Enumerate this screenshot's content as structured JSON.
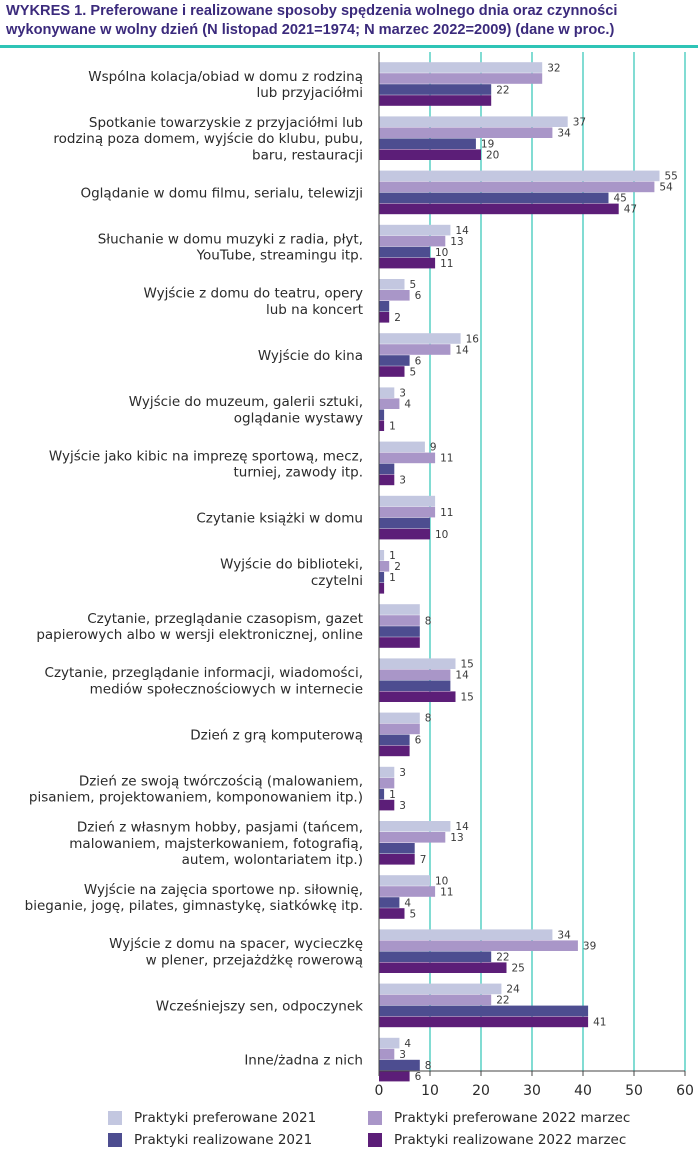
{
  "title_line1": "WYKRES 1. Preferowane i realizowane sposoby spędzenia wolnego dnia oraz czynności",
  "title_line2": "wykonywane w wolny dzień (N listopad 2021=1974; N marzec 2022=2009) (dane w proc.)",
  "colors": {
    "pref2021": "#c3c7e0",
    "pref2022": "#a996c8",
    "real2021": "#4d4d90",
    "real2022": "#5c1e78",
    "grid": "#2ec4b6",
    "axis": "#444444",
    "title": "#3b2a7c"
  },
  "chart_data": {
    "type": "bar",
    "orientation": "horizontal",
    "title": "WYKRES 1. Preferowane i realizowane sposoby spędzenia wolnego dnia oraz czynności wykonywane w wolny dzień (N listopad 2021=1974; N marzec 2022=2009) (dane w proc.)",
    "xlabel": "",
    "ylabel": "",
    "xlim": [
      0,
      60
    ],
    "xticks": [
      0,
      10,
      20,
      30,
      40,
      50,
      60
    ],
    "grid": true,
    "legend_position": "bottom",
    "categories": [
      [
        "Wspólna kolacja/obiad w domu z rodziną",
        "lub przyjaciółmi"
      ],
      [
        "Spotkanie towarzyskie z przyjaciółmi lub",
        "rodziną poza domem, wyjście do klubu, pubu,",
        "baru, restauracji"
      ],
      [
        "Oglądanie w domu filmu, serialu, telewizji"
      ],
      [
        "Słuchanie w domu muzyki z radia, płyt,",
        "YouTube, streamingu itp."
      ],
      [
        "Wyjście z domu do teatru, opery",
        "lub na koncert"
      ],
      [
        "Wyjście do kina"
      ],
      [
        "Wyjście do muzeum, galerii sztuki,",
        "oglądanie wystawy"
      ],
      [
        "Wyjście jako kibic na imprezę sportową, mecz,",
        "turniej, zawody itp."
      ],
      [
        "Czytanie książki w domu"
      ],
      [
        "Wyjście do biblioteki,",
        "czytelni"
      ],
      [
        "Czytanie, przeglądanie czasopism, gazet",
        "papierowych albo w wersji elektronicznej, online"
      ],
      [
        "Czytanie, przeglądanie informacji, wiadomości,",
        "mediów społecznościowych w internecie"
      ],
      [
        "Dzień z grą komputerową"
      ],
      [
        "Dzień ze swoją twórczością (malowaniem,",
        "pisaniem, projektowaniem, komponowaniem itp.)"
      ],
      [
        "Dzień z własnym hobby, pasjami (tańcem,",
        "malowaniem, majsterkowaniem, fotografią,",
        "autem, wolontariatem itp.)"
      ],
      [
        "Wyjście na zajęcia sportowe np. siłownię,",
        "bieganie, jogę, pilates, gimnastykę, siatkówkę itp."
      ],
      [
        "Wyjście z domu na spacer, wycieczkę",
        "w plener, przejażdżkę rowerową"
      ],
      [
        "Wcześniejszy sen, odpoczynek"
      ],
      [
        "Inne/żadna z nich"
      ]
    ],
    "series": [
      {
        "name": "Praktyki preferowane 2021",
        "color_key": "pref2021",
        "values": [
          32,
          37,
          55,
          14,
          5,
          16,
          3,
          9,
          11,
          1,
          8,
          15,
          8,
          3,
          14,
          10,
          34,
          24,
          4
        ],
        "labels": [
          "32",
          "37",
          "55",
          "14",
          "5",
          "16",
          "3",
          "9",
          "",
          "1",
          "",
          "15",
          "8",
          "3",
          "14",
          "10",
          "34",
          "24",
          "4"
        ]
      },
      {
        "name": "Praktyki preferowane 2022 marzec",
        "color_key": "pref2022",
        "values": [
          32,
          34,
          54,
          13,
          6,
          14,
          4,
          11,
          11,
          2,
          8,
          14,
          8,
          3,
          13,
          11,
          39,
          22,
          3
        ],
        "labels": [
          "",
          "34",
          "54",
          "13",
          "6",
          "14",
          "4",
          "11",
          "11",
          "2",
          "8",
          "14",
          "",
          "",
          "13",
          "11",
          "39",
          "22",
          "3"
        ]
      },
      {
        "name": "Praktyki realizowane 2021",
        "color_key": "real2021",
        "values": [
          22,
          19,
          45,
          10,
          2,
          6,
          1,
          3,
          10,
          1,
          8,
          14,
          6,
          1,
          7,
          4,
          22,
          41,
          8
        ],
        "labels": [
          "22",
          "19",
          "45",
          "10",
          "",
          "6",
          "",
          "",
          "",
          "1",
          "",
          "",
          "6",
          "1",
          "",
          "4",
          "22",
          "",
          "8"
        ]
      },
      {
        "name": "Praktyki realizowane 2022 marzec",
        "color_key": "real2022",
        "values": [
          22,
          20,
          47,
          11,
          2,
          5,
          1,
          3,
          10,
          1,
          8,
          15,
          6,
          3,
          7,
          5,
          25,
          41,
          6
        ],
        "labels": [
          "",
          "20",
          "47",
          "11",
          "2",
          "5",
          "1",
          "3",
          "10",
          "",
          "",
          "15",
          "",
          "3",
          "7",
          "5",
          "25",
          "41",
          "6"
        ]
      }
    ]
  },
  "legend": {
    "item1": "Praktyki preferowane 2021",
    "item2": "Praktyki preferowane 2022 marzec",
    "item3": "Praktyki realizowane 2021",
    "item4": "Praktyki realizowane 2022 marzec"
  }
}
